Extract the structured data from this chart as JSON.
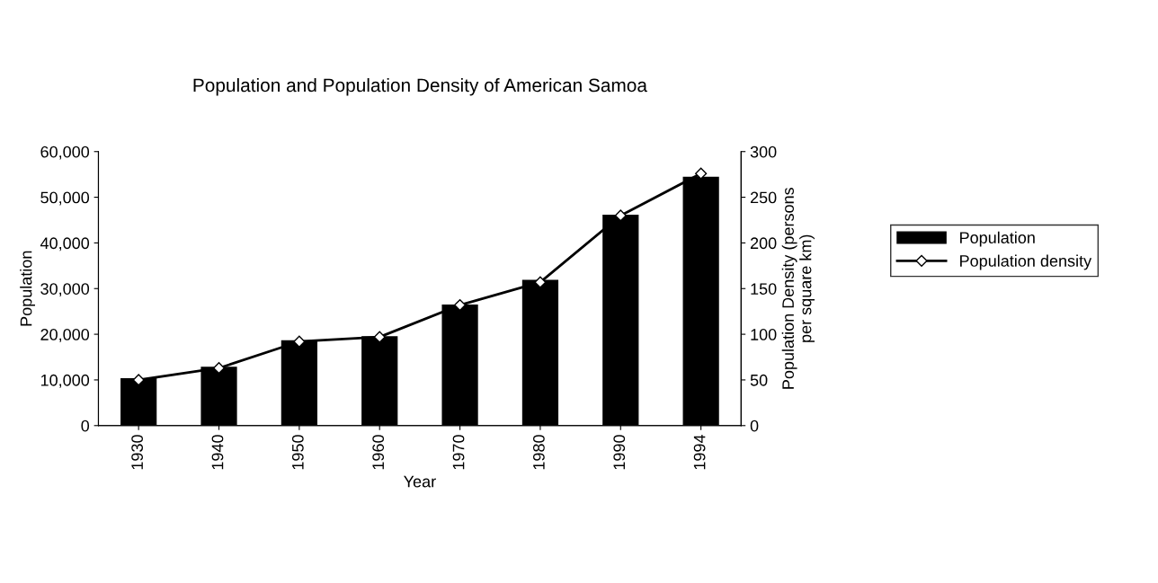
{
  "chart_data": {
    "type": "bar",
    "title": "Population and Population Density of American Samoa",
    "xlabel": "Year",
    "ylabel": "Population",
    "y2label": "Population Density (persons\nper square km)",
    "categories": [
      "1930",
      "1940",
      "1950",
      "1960",
      "1970",
      "1980",
      "1990",
      "1994"
    ],
    "series": [
      {
        "name": "Population",
        "color": "#000000",
        "values": [
          10400,
          12900,
          18700,
          19600,
          26500,
          31900,
          46200,
          54500
        ]
      },
      {
        "name": "Population density",
        "type": "line",
        "axis": "y2",
        "color": "#000000",
        "marker": "diamond",
        "values": [
          50,
          63,
          92,
          97,
          132,
          157,
          230,
          276
        ]
      }
    ],
    "ylim": [
      0,
      60000
    ],
    "yticks": [
      {
        "value": 0,
        "label": "0"
      },
      {
        "value": 10000,
        "label": "10,000"
      },
      {
        "value": 20000,
        "label": "20,000"
      },
      {
        "value": 30000,
        "label": "30,000"
      },
      {
        "value": 40000,
        "label": "40,000"
      },
      {
        "value": 50000,
        "label": "50,000"
      },
      {
        "value": 60000,
        "label": "60,000"
      }
    ],
    "y2lim": [
      0,
      300
    ],
    "y2ticks": [
      0,
      50,
      100,
      150,
      200,
      250,
      300
    ],
    "legend": "right",
    "grid": false
  }
}
